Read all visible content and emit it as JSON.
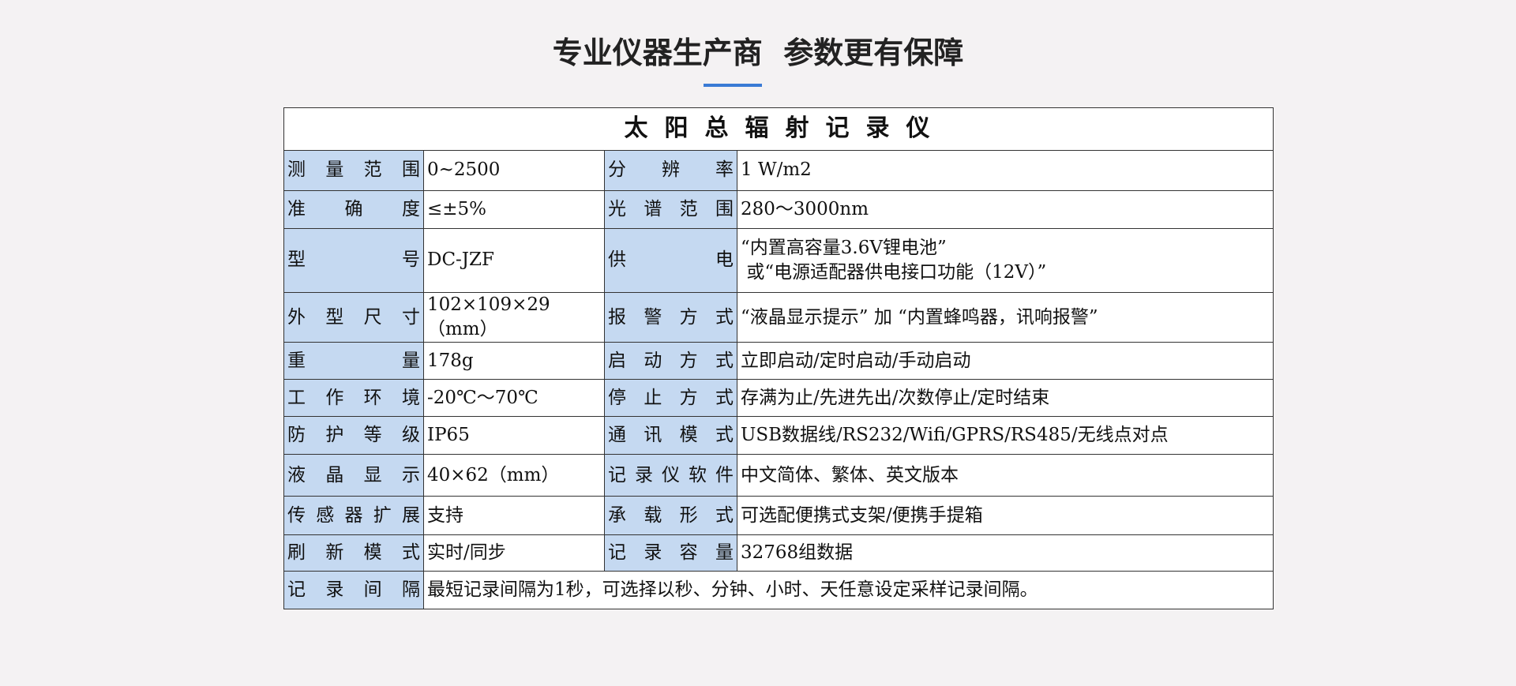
{
  "header": {
    "title": "专业仪器生产商  参数更有保障"
  },
  "table": {
    "title": "太阳总辐射记录仪",
    "rows": [
      [
        "测量范围",
        "0~2500",
        "分辨率",
        "1 W/m2"
      ],
      [
        "准确度",
        "≤±5%",
        "光谱范围",
        "280～3000nm"
      ],
      [
        "型号",
        "DC-JZF",
        "供电",
        "“内置高容量3.6V锂电池”\n 或“电源适配器供电接口功能（12V）”"
      ],
      [
        "外型尺寸",
        "102×109×29（mm）",
        "报警方式",
        "“液晶显示提示” 加 “内置蜂鸣器，讯响报警”"
      ],
      [
        "重量",
        "178g",
        "启动方式",
        "立即启动/定时启动/手动启动"
      ],
      [
        "工作环境",
        "-20℃～70℃",
        "停止方式",
        "存满为止/先进先出/次数停止/定时结束"
      ],
      [
        "防护等级",
        "IP65",
        "通讯模式",
        "USB数据线/RS232/Wifi/GPRS/RS485/无线点对点"
      ],
      [
        "液晶显示",
        "40×62（mm）",
        "记录仪软件",
        "中文简体、繁体、英文版本"
      ],
      [
        "传感器扩展",
        "支持",
        "承载形式",
        "可选配便携式支架/便携手提箱"
      ],
      [
        "刷新模式",
        "实时/同步",
        "记录容量",
        "32768组数据"
      ],
      [
        "记录间隔",
        "最短记录间隔为1秒，可选择以秒、分钟、小时、天任意设定采样记录间隔。"
      ]
    ]
  }
}
